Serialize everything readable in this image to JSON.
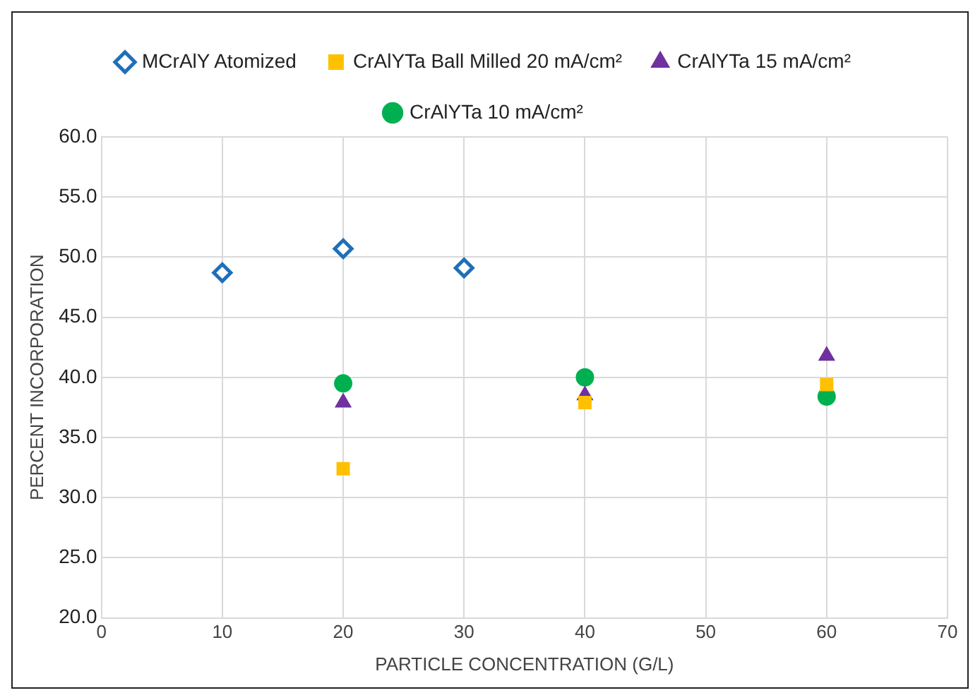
{
  "chart_data": {
    "type": "scatter",
    "xlabel": "PARTICLE CONCENTRATION (G/L)",
    "ylabel": "PERCENT INCORPORATION",
    "xlim": [
      0,
      70
    ],
    "xticks": [
      0,
      10,
      20,
      30,
      40,
      50,
      60,
      70
    ],
    "ylim": [
      20,
      60
    ],
    "yticks": [
      {
        "value": 20,
        "label": "20.0"
      },
      {
        "value": 25,
        "label": "25.0"
      },
      {
        "value": 30,
        "label": "30.0"
      },
      {
        "value": 35,
        "label": "35.0"
      },
      {
        "value": 40,
        "label": "40.0"
      },
      {
        "value": 45,
        "label": "45.0"
      },
      {
        "value": 50,
        "label": "50.0"
      },
      {
        "value": 55,
        "label": "55.0"
      },
      {
        "value": 60,
        "label": "60.0"
      }
    ],
    "grid": true,
    "legend": "top",
    "series": [
      {
        "name": "MCrAlY Atomized",
        "color": "#1f6fb8",
        "marker": "diamond",
        "x": [
          10,
          20,
          30
        ],
        "values": [
          48.7,
          50.7,
          49.1
        ]
      },
      {
        "name": "CrAlYTa Ball Milled 20 mA/cm²",
        "color": "#ffc000",
        "marker": "square",
        "x": [
          20,
          40,
          60
        ],
        "values": [
          32.4,
          37.9,
          39.4
        ]
      },
      {
        "name": "CrAlYTa 15 mA/cm²",
        "color": "#7030a0",
        "marker": "triangle",
        "x": [
          20,
          40,
          60
        ],
        "values": [
          37.9,
          38.5,
          41.8
        ]
      },
      {
        "name": "CrAlYTa 10 mA/cm²",
        "color": "#00b050",
        "marker": "circle",
        "x": [
          20,
          40,
          60
        ],
        "values": [
          39.5,
          40.0,
          38.4
        ]
      }
    ]
  }
}
